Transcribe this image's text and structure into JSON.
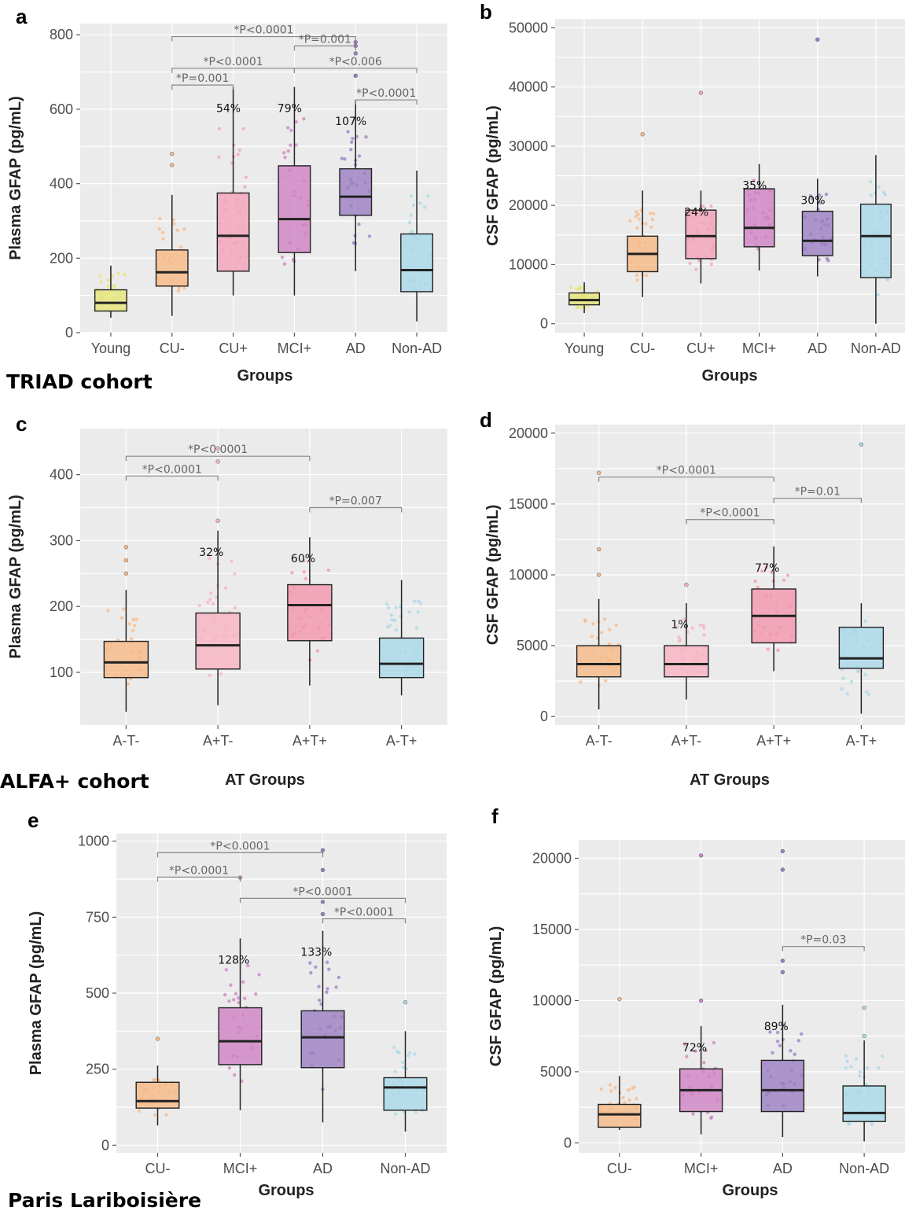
{
  "colors": {
    "Young": "#e6e57a",
    "CU-": "#f8b985",
    "CU+": "#f2a3b8",
    "MCI+": "#cf82c3",
    "AD": "#9a7ec2",
    "Non-AD": "#a9d8e8",
    "A-T-": "#f8b985",
    "A+T-": "#f8b3c2",
    "A+T+": "#f296ad",
    "A-T+": "#a9d8e8"
  },
  "cohorts": [
    {
      "label": "TRIAD cohort"
    },
    {
      "label": "ALFA+ cohort"
    },
    {
      "label": "Paris Lariboisière"
    }
  ],
  "chart_data": [
    {
      "panel": "a",
      "type": "box",
      "xlabel": "Groups",
      "ylabel": "Plasma GFAP (pg/mL)",
      "ylim": [
        0,
        830
      ],
      "yticks": [
        "0",
        "200",
        "400",
        "600",
        "800"
      ],
      "yticks_values": [
        0,
        200,
        400,
        600,
        800
      ],
      "categories": [
        "Young",
        "CU-",
        "CU+",
        "MCI+",
        "AD",
        "Non-AD"
      ],
      "boxes": [
        {
          "whisker_low": 40,
          "q1": 58,
          "median": 80,
          "q3": 115,
          "whisker_high": 180,
          "annotation": ""
        },
        {
          "whisker_low": 45,
          "q1": 125,
          "median": 162,
          "q3": 222,
          "whisker_high": 370,
          "annotation": ""
        },
        {
          "whisker_low": 100,
          "q1": 165,
          "median": 260,
          "q3": 375,
          "whisker_high": 660,
          "annotation": "54%"
        },
        {
          "whisker_low": 100,
          "q1": 215,
          "median": 305,
          "q3": 448,
          "whisker_high": 660,
          "annotation": "79%"
        },
        {
          "whisker_low": 165,
          "q1": 315,
          "median": 365,
          "q3": 440,
          "whisker_high": 625,
          "annotation": "107%"
        },
        {
          "whisker_low": 30,
          "q1": 110,
          "median": 168,
          "q3": 265,
          "whisker_high": 435,
          "annotation": ""
        }
      ],
      "outliers": [
        [
          1,
          450
        ],
        [
          1,
          480
        ],
        [
          4,
          690
        ],
        [
          4,
          750
        ],
        [
          4,
          770
        ],
        [
          4,
          780
        ]
      ],
      "comparisons": [
        {
          "from": 1,
          "to": 4,
          "y": 795,
          "text": "*P<0.0001"
        },
        {
          "from": 3,
          "to": 4,
          "y": 770,
          "text": "*P=0.001"
        },
        {
          "from": 1,
          "to": 3,
          "y": 710,
          "text": "*P<0.0001"
        },
        {
          "from": 3,
          "to": 5,
          "y": 710,
          "text": "*P<0.006"
        },
        {
          "from": 1,
          "to": 2,
          "y": 665,
          "text": "*P=0.001"
        },
        {
          "from": 4,
          "to": 5,
          "y": 625,
          "text": "*P<0.0001"
        }
      ]
    },
    {
      "panel": "b",
      "type": "box",
      "xlabel": "Groups",
      "ylabel": "CSF GFAP (pg/mL)",
      "ylim": [
        -1500,
        51500
      ],
      "yticks": [
        "0",
        "10000",
        "20000",
        "30000",
        "40000",
        "50000"
      ],
      "yticks_values": [
        0,
        10000,
        20000,
        30000,
        40000,
        50000
      ],
      "categories": [
        "Young",
        "CU-",
        "CU+",
        "MCI+",
        "AD",
        "Non-AD"
      ],
      "boxes": [
        {
          "whisker_low": 1800,
          "q1": 3200,
          "median": 4000,
          "q3": 5200,
          "whisker_high": 7000,
          "annotation": ""
        },
        {
          "whisker_low": 4500,
          "q1": 8800,
          "median": 11800,
          "q3": 14800,
          "whisker_high": 22500,
          "annotation": ""
        },
        {
          "whisker_low": 6800,
          "q1": 11000,
          "median": 14800,
          "q3": 19200,
          "whisker_high": 22500,
          "annotation": "24%"
        },
        {
          "whisker_low": 9000,
          "q1": 13000,
          "median": 16200,
          "q3": 22800,
          "whisker_high": 27000,
          "annotation": "35%"
        },
        {
          "whisker_low": 8000,
          "q1": 11500,
          "median": 14000,
          "q3": 19000,
          "whisker_high": 24500,
          "annotation": "30%"
        },
        {
          "whisker_low": 0,
          "q1": 7800,
          "median": 14800,
          "q3": 20200,
          "whisker_high": 28500,
          "annotation": ""
        }
      ],
      "outliers": [
        [
          1,
          32000
        ],
        [
          2,
          39000
        ],
        [
          4,
          48000
        ]
      ],
      "comparisons": []
    },
    {
      "panel": "c",
      "type": "box",
      "xlabel": "AT Groups",
      "ylabel": "Plasma GFAP (pg/mL)",
      "ylim": [
        20,
        470
      ],
      "yticks": [
        "100",
        "200",
        "300",
        "400"
      ],
      "yticks_values": [
        100,
        200,
        300,
        400
      ],
      "categories": [
        "A-T-",
        "A+T-",
        "A+T+",
        "A-T+"
      ],
      "boxes": [
        {
          "whisker_low": 40,
          "q1": 92,
          "median": 115,
          "q3": 147,
          "whisker_high": 225,
          "annotation": ""
        },
        {
          "whisker_low": 50,
          "q1": 105,
          "median": 141,
          "q3": 190,
          "whisker_high": 315,
          "annotation": "32%"
        },
        {
          "whisker_low": 80,
          "q1": 148,
          "median": 202,
          "q3": 233,
          "whisker_high": 305,
          "annotation": "60%"
        },
        {
          "whisker_low": 65,
          "q1": 92,
          "median": 113,
          "q3": 152,
          "whisker_high": 240,
          "annotation": ""
        }
      ],
      "outliers": [
        [
          0,
          250
        ],
        [
          0,
          270
        ],
        [
          0,
          290
        ],
        [
          1,
          330
        ],
        [
          1,
          420
        ],
        [
          1,
          440
        ]
      ],
      "comparisons": [
        {
          "from": 0,
          "to": 2,
          "y": 428,
          "text": "*P<0.0001"
        },
        {
          "from": 0,
          "to": 1,
          "y": 398,
          "text": "*P<0.0001"
        },
        {
          "from": 2,
          "to": 3,
          "y": 350,
          "text": "*P=0.007"
        }
      ]
    },
    {
      "panel": "d",
      "type": "box",
      "xlabel": "AT Groups",
      "ylabel": "CSF GFAP (pg/mL)",
      "ylim": [
        -600,
        20600
      ],
      "yticks": [
        "0",
        "5000",
        "10000",
        "15000",
        "20000"
      ],
      "yticks_values": [
        0,
        5000,
        10000,
        15000,
        20000
      ],
      "categories": [
        "A-T-",
        "A+T-",
        "A+T+",
        "A-T+"
      ],
      "boxes": [
        {
          "whisker_low": 500,
          "q1": 2800,
          "median": 3700,
          "q3": 5000,
          "whisker_high": 8300,
          "annotation": ""
        },
        {
          "whisker_low": 1200,
          "q1": 2800,
          "median": 3700,
          "q3": 5000,
          "whisker_high": 8000,
          "annotation": "1%"
        },
        {
          "whisker_low": 3200,
          "q1": 5200,
          "median": 7100,
          "q3": 9000,
          "whisker_high": 12000,
          "annotation": "77%"
        },
        {
          "whisker_low": 200,
          "q1": 3400,
          "median": 4100,
          "q3": 6300,
          "whisker_high": 8000,
          "annotation": ""
        }
      ],
      "outliers": [
        [
          0,
          10000
        ],
        [
          0,
          11800
        ],
        [
          0,
          17200
        ],
        [
          1,
          9300
        ],
        [
          3,
          19200
        ]
      ],
      "comparisons": [
        {
          "from": 0,
          "to": 2,
          "y": 16900,
          "text": "*P<0.0001"
        },
        {
          "from": 2,
          "to": 3,
          "y": 15400,
          "text": "*P=0.01"
        },
        {
          "from": 1,
          "to": 2,
          "y": 13900,
          "text": "*P<0.0001"
        }
      ]
    },
    {
      "panel": "e",
      "type": "box",
      "xlabel": "Groups",
      "ylabel": "Plasma GFAP (pg/mL)",
      "ylim": [
        -25,
        1025
      ],
      "yticks": [
        "0",
        "250",
        "500",
        "750",
        "1000"
      ],
      "yticks_values": [
        0,
        250,
        500,
        750,
        1000
      ],
      "categories": [
        "CU-",
        "MCI+",
        "AD",
        "Non-AD"
      ],
      "boxes": [
        {
          "whisker_low": 65,
          "q1": 122,
          "median": 145,
          "q3": 207,
          "whisker_high": 262,
          "annotation": ""
        },
        {
          "whisker_low": 115,
          "q1": 265,
          "median": 342,
          "q3": 452,
          "whisker_high": 680,
          "annotation": "128%"
        },
        {
          "whisker_low": 75,
          "q1": 255,
          "median": 355,
          "q3": 442,
          "whisker_high": 705,
          "annotation": "133%"
        },
        {
          "whisker_low": 45,
          "q1": 115,
          "median": 190,
          "q3": 222,
          "whisker_high": 375,
          "annotation": ""
        }
      ],
      "outliers": [
        [
          0,
          350
        ],
        [
          1,
          880
        ],
        [
          2,
          760
        ],
        [
          2,
          800
        ],
        [
          2,
          905
        ],
        [
          2,
          970
        ],
        [
          3,
          470
        ]
      ],
      "comparisons": [
        {
          "from": 0,
          "to": 2,
          "y": 962,
          "text": "*P<0.0001"
        },
        {
          "from": 0,
          "to": 1,
          "y": 882,
          "text": "*P<0.0001"
        },
        {
          "from": 1,
          "to": 3,
          "y": 812,
          "text": "*P<0.0001"
        },
        {
          "from": 2,
          "to": 3,
          "y": 745,
          "text": "*P<0.0001"
        }
      ]
    },
    {
      "panel": "f",
      "type": "box",
      "xlabel": "Groups",
      "ylabel": "CSF GFAP (pg/mL)",
      "ylim": [
        -700,
        21300
      ],
      "yticks": [
        "0",
        "5000",
        "10000",
        "15000",
        "20000"
      ],
      "yticks_values": [
        0,
        5000,
        10000,
        15000,
        20000
      ],
      "categories": [
        "CU-",
        "MCI+",
        "AD",
        "Non-AD"
      ],
      "boxes": [
        {
          "whisker_low": 900,
          "q1": 1100,
          "median": 2000,
          "q3": 2700,
          "whisker_high": 4700,
          "annotation": ""
        },
        {
          "whisker_low": 600,
          "q1": 2200,
          "median": 3700,
          "q3": 5200,
          "whisker_high": 8200,
          "annotation": "72%"
        },
        {
          "whisker_low": 400,
          "q1": 2200,
          "median": 3700,
          "q3": 5800,
          "whisker_high": 9700,
          "annotation": "89%"
        },
        {
          "whisker_low": 100,
          "q1": 1500,
          "median": 2100,
          "q3": 4000,
          "whisker_high": 7200,
          "annotation": ""
        }
      ],
      "outliers": [
        [
          0,
          10100
        ],
        [
          1,
          10000
        ],
        [
          1,
          20200
        ],
        [
          2,
          12000
        ],
        [
          2,
          12800
        ],
        [
          2,
          19200
        ],
        [
          2,
          20500
        ],
        [
          3,
          9500
        ],
        [
          3,
          7500
        ]
      ],
      "comparisons": [
        {
          "from": 2,
          "to": 3,
          "y": 13800,
          "text": "*P=0.03"
        }
      ]
    }
  ]
}
